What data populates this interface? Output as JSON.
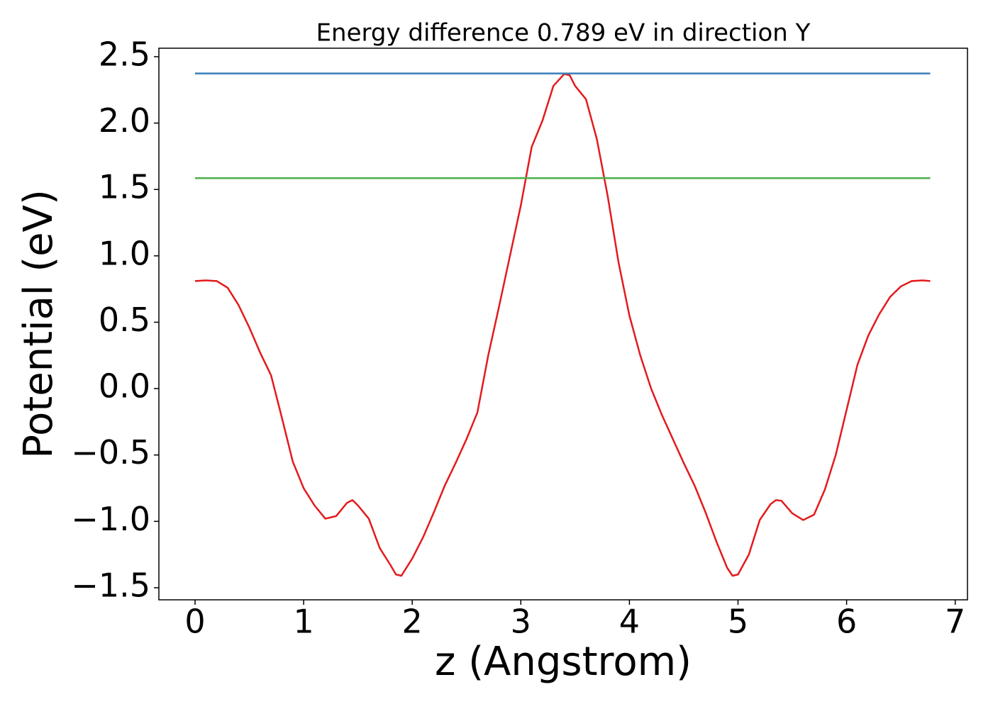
{
  "chart_data": {
    "type": "line",
    "title": "Energy difference 0.789 eV in direction Y",
    "x_label": "z (Angstrom)",
    "y_label": "Potential (eV)",
    "xlim": [
      -0.333,
      7.113
    ],
    "ylim": [
      -1.591,
      2.564
    ],
    "xticks": [
      0,
      1,
      2,
      3,
      4,
      5,
      6,
      7
    ],
    "yticks": [
      {
        "value": -1.5,
        "label": "−1.5"
      },
      {
        "value": -1.0,
        "label": "−1.0"
      },
      {
        "value": -0.5,
        "label": "−0.5"
      },
      {
        "value": 0,
        "label": "0.0"
      },
      0.5,
      {
        "value": 1.0,
        "label": "1.0"
      },
      1.5,
      {
        "value": 2.0,
        "label": "2.0"
      },
      2.5
    ],
    "series": [
      {
        "color": "#e41a1c",
        "x": [
          0,
          0.1,
          0.2,
          0.3,
          0.4,
          0.5,
          0.6,
          0.7,
          0.8,
          0.9,
          1.0,
          1.1,
          1.2,
          1.3,
          1.4,
          1.45,
          1.5,
          1.6,
          1.7,
          1.8,
          1.85,
          1.9,
          2.0,
          2.1,
          2.2,
          2.3,
          2.4,
          2.5,
          2.6,
          2.7,
          2.8,
          2.9,
          3.0,
          3.1,
          3.2,
          3.3,
          3.4,
          3.45,
          3.5,
          3.6,
          3.7,
          3.8,
          3.9,
          4.0,
          4.1,
          4.2,
          4.3,
          4.4,
          4.5,
          4.6,
          4.7,
          4.8,
          4.9,
          4.95,
          5.0,
          5.1,
          5.2,
          5.3,
          5.35,
          5.4,
          5.5,
          5.6,
          5.7,
          5.8,
          5.9,
          6.0,
          6.1,
          6.2,
          6.3,
          6.4,
          6.5,
          6.6,
          6.7,
          6.77
        ],
        "values": [
          0.81,
          0.815,
          0.81,
          0.76,
          0.63,
          0.46,
          0.27,
          0.1,
          -0.22,
          -0.55,
          -0.75,
          -0.88,
          -0.98,
          -0.96,
          -0.86,
          -0.84,
          -0.88,
          -0.98,
          -1.2,
          -1.33,
          -1.4,
          -1.41,
          -1.28,
          -1.12,
          -0.93,
          -0.73,
          -0.56,
          -0.38,
          -0.18,
          0.25,
          0.62,
          1.0,
          1.38,
          1.82,
          2.02,
          2.28,
          2.37,
          2.36,
          2.28,
          2.18,
          1.88,
          1.45,
          0.95,
          0.55,
          0.25,
          0.0,
          -0.2,
          -0.38,
          -0.56,
          -0.73,
          -0.93,
          -1.15,
          -1.35,
          -1.41,
          -1.4,
          -1.25,
          -0.99,
          -0.87,
          -0.84,
          -0.845,
          -0.94,
          -0.99,
          -0.95,
          -0.76,
          -0.5,
          -0.16,
          0.18,
          0.4,
          0.56,
          0.69,
          0.77,
          0.81,
          0.815,
          0.81
        ]
      },
      {
        "color": "#377eb8",
        "x": [
          0,
          6.77
        ],
        "values": [
          2.374,
          2.374
        ]
      },
      {
        "color": "#4daf4a",
        "x": [
          0,
          6.77
        ],
        "values": [
          1.585,
          1.585
        ]
      }
    ]
  }
}
